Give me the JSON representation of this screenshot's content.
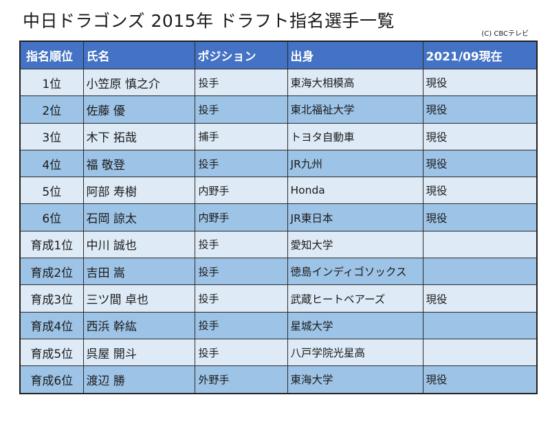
{
  "title": "中日ドラゴンズ 2015年 ドラフト指名選手一覧",
  "credit": "(C) CBCテレビ",
  "columns": [
    "指名順位",
    "氏名",
    "ポジション",
    "出身",
    "2021/09現在"
  ],
  "rows": [
    {
      "rank": "1位",
      "name": "小笠原 慎之介",
      "position": "投手",
      "origin": "東海大相模高",
      "status": "現役"
    },
    {
      "rank": "2位",
      "name": "佐藤 優",
      "position": "投手",
      "origin": "東北福祉大学",
      "status": "現役"
    },
    {
      "rank": "3位",
      "name": "木下 拓哉",
      "position": "捕手",
      "origin": "トヨタ自動車",
      "status": "現役"
    },
    {
      "rank": "4位",
      "name": "福 敬登",
      "position": "投手",
      "origin": "JR九州",
      "status": "現役"
    },
    {
      "rank": "5位",
      "name": "阿部 寿樹",
      "position": "内野手",
      "origin": "Honda",
      "status": "現役"
    },
    {
      "rank": "6位",
      "name": "石岡 諒太",
      "position": "内野手",
      "origin": "JR東日本",
      "status": "現役"
    },
    {
      "rank": "育成1位",
      "name": "中川 誠也",
      "position": "投手",
      "origin": "愛知大学",
      "status": ""
    },
    {
      "rank": "育成2位",
      "name": "吉田 嵩",
      "position": "投手",
      "origin": "徳島インディゴソックス",
      "status": ""
    },
    {
      "rank": "育成3位",
      "name": "三ツ間 卓也",
      "position": "投手",
      "origin": "武蔵ヒートベアーズ",
      "status": "現役"
    },
    {
      "rank": "育成4位",
      "name": "西浜 幹紘",
      "position": "投手",
      "origin": "星城大学",
      "status": ""
    },
    {
      "rank": "育成5位",
      "name": "呉屋 開斗",
      "position": "投手",
      "origin": "八戸学院光星高",
      "status": ""
    },
    {
      "rank": "育成6位",
      "name": "渡辺 勝",
      "position": "外野手",
      "origin": "東海大学",
      "status": "現役"
    }
  ],
  "colors": {
    "header_bg": "#4472c4",
    "row_light": "#deeaf6",
    "row_dark": "#9dc3e6"
  }
}
